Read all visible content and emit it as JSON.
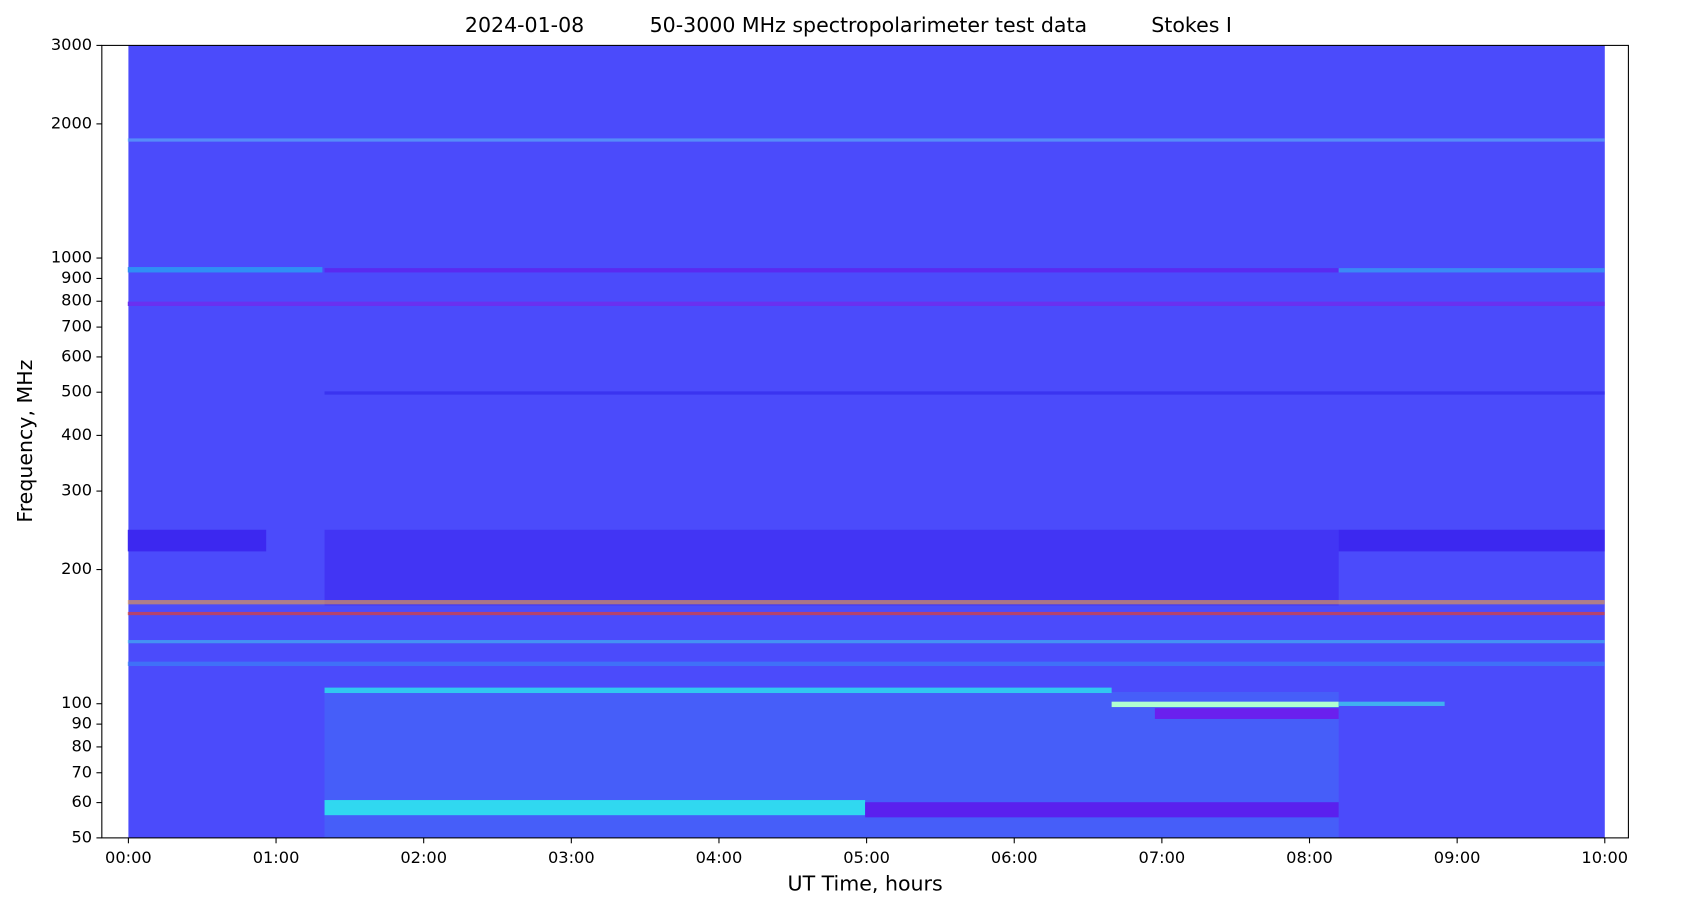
{
  "chart_data": {
    "type": "spectrogram",
    "title_date": "2024-01-08",
    "title": "50-3000 MHz spectropolarimeter test data",
    "title_mode": "Stokes I",
    "xlabel": "UT Time, hours",
    "ylabel": "Frequency, MHz",
    "xlim": [
      -0.18,
      10.16
    ],
    "xticks": [
      {
        "value": 0,
        "label": "00:00"
      },
      {
        "value": 1,
        "label": "01:00"
      },
      {
        "value": 2,
        "label": "02:00"
      },
      {
        "value": 3,
        "label": "03:00"
      },
      {
        "value": 4,
        "label": "04:00"
      },
      {
        "value": 5,
        "label": "05:00"
      },
      {
        "value": 6,
        "label": "06:00"
      },
      {
        "value": 7,
        "label": "07:00"
      },
      {
        "value": 8,
        "label": "08:00"
      },
      {
        "value": 9,
        "label": "09:00"
      },
      {
        "value": 10,
        "label": "10:00"
      }
    ],
    "ylim": [
      50,
      3000
    ],
    "yscale": "log",
    "yticks": [
      50,
      60,
      70,
      80,
      90,
      100,
      200,
      300,
      400,
      500,
      600,
      700,
      800,
      900,
      1000,
      2000,
      3000
    ],
    "data_xlim": [
      0,
      10
    ],
    "color": "#4b4bfb"
  }
}
